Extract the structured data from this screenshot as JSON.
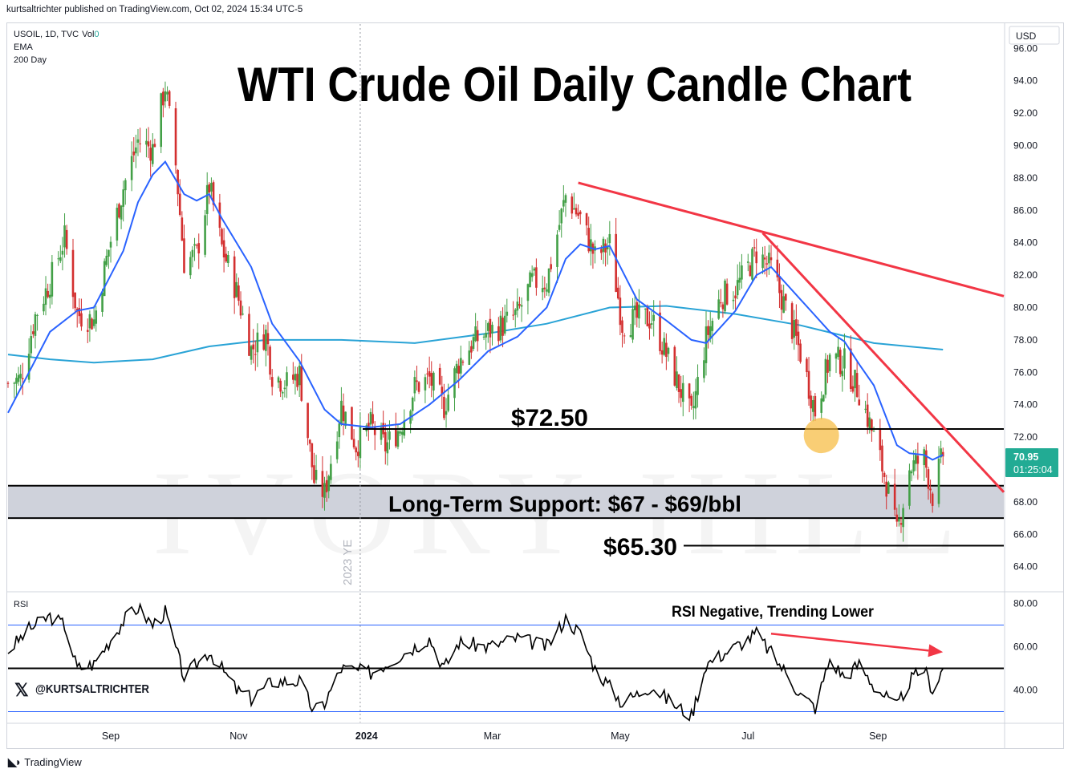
{
  "header": {
    "published": "kurtsaltrichter published on TradingView.com, Oct 02, 2024 15:34 UTC-5"
  },
  "legend": {
    "symbol": "USOIL, 1D, TVC",
    "vol_label": "Vol",
    "vol_value": "0",
    "ema_label": "EMA",
    "ma_label": "200 Day"
  },
  "title": "WTI Crude Oil Daily Candle Chart",
  "annotations": {
    "resistance_label": "$72.50",
    "support_zone_label": "Long-Term Support: $67 - $69/bbl",
    "low_label": "$65.30",
    "rsi_note": "RSI Negative, Trending Lower",
    "year_end_label": "2023 YE",
    "watermark": "IVORY HILL",
    "handle": "@KURTSALTRICHTER",
    "handle_icon": "x-logo-icon"
  },
  "price_axis": {
    "currency": "USD",
    "ticks": [
      "96.00",
      "94.00",
      "92.00",
      "90.00",
      "88.00",
      "86.00",
      "84.00",
      "82.00",
      "80.00",
      "78.00",
      "76.00",
      "74.00",
      "72.00",
      "70.00",
      "68.00",
      "66.00",
      "64.00"
    ],
    "last_price": "70.95",
    "countdown": "01:25:04"
  },
  "rsi_pane": {
    "label": "RSI",
    "ticks": [
      "80.00",
      "60.00",
      "40.00"
    ]
  },
  "time_axis": {
    "labels": [
      "Sep",
      "Nov",
      "2024",
      "Mar",
      "May",
      "Jul",
      "Sep"
    ]
  },
  "footer": {
    "brand": "TradingView",
    "brand_icon": "tradingview-logo-icon"
  },
  "colors": {
    "up": "#26a69a",
    "down": "#ef5350",
    "candle_up": "#43a047",
    "candle_down": "#d32f2f",
    "ema": "#2962ff",
    "ma200": "#29a3d6",
    "trendline": "#f23645",
    "support_zone": "#cfd2db",
    "last_price_bg": "#22ab94",
    "highlight": "#f6b93b"
  },
  "chart_data": {
    "type": "candlestick",
    "symbol": "USOIL",
    "timeframe": "1D",
    "ylim": [
      62.5,
      97.5
    ],
    "rsi_ylim": [
      25,
      85
    ],
    "x_range": [
      "2023-07-14",
      "2024-10-31"
    ],
    "close_series": [
      [
        "2023-07-14",
        75.3
      ],
      [
        "2023-07-20",
        75.6
      ],
      [
        "2023-07-27",
        79.5
      ],
      [
        "2023-08-03",
        81.6
      ],
      [
        "2023-08-10",
        84.3
      ],
      [
        "2023-08-16",
        79.6
      ],
      [
        "2023-08-24",
        79.2
      ],
      [
        "2023-08-31",
        83.6
      ],
      [
        "2023-09-07",
        87.4
      ],
      [
        "2023-09-14",
        90.3
      ],
      [
        "2023-09-21",
        89.8
      ],
      [
        "2023-09-27",
        93.7
      ],
      [
        "2023-10-02",
        88.8
      ],
      [
        "2023-10-06",
        82.8
      ],
      [
        "2023-10-12",
        83.3
      ],
      [
        "2023-10-18",
        87.5
      ],
      [
        "2023-10-24",
        83.7
      ],
      [
        "2023-10-31",
        81.0
      ],
      [
        "2023-11-07",
        77.4
      ],
      [
        "2023-11-14",
        78.4
      ],
      [
        "2023-11-17",
        75.9
      ],
      [
        "2023-11-24",
        75.3
      ],
      [
        "2023-11-30",
        75.9
      ],
      [
        "2023-12-07",
        69.3
      ],
      [
        "2023-12-12",
        68.5
      ],
      [
        "2023-12-20",
        74.0
      ],
      [
        "2023-12-27",
        71.5
      ],
      [
        "2024-01-03",
        72.7
      ],
      [
        "2024-01-10",
        71.4
      ],
      [
        "2024-01-17",
        72.6
      ],
      [
        "2024-01-24",
        75.1
      ],
      [
        "2024-01-31",
        75.6
      ],
      [
        "2024-02-07",
        73.9
      ],
      [
        "2024-02-14",
        76.6
      ],
      [
        "2024-02-21",
        77.9
      ],
      [
        "2024-02-28",
        78.5
      ],
      [
        "2024-03-06",
        78.9
      ],
      [
        "2024-03-13",
        79.6
      ],
      [
        "2024-03-20",
        81.6
      ],
      [
        "2024-03-27",
        81.6
      ],
      [
        "2024-04-05",
        86.9
      ],
      [
        "2024-04-12",
        85.5
      ],
      [
        "2024-04-19",
        83.1
      ],
      [
        "2024-04-26",
        83.9
      ],
      [
        "2024-05-02",
        79.0
      ],
      [
        "2024-05-09",
        79.3
      ],
      [
        "2024-05-16",
        79.3
      ],
      [
        "2024-05-23",
        77.1
      ],
      [
        "2024-06-04",
        73.2
      ],
      [
        "2024-06-11",
        78.1
      ],
      [
        "2024-06-18",
        80.7
      ],
      [
        "2024-06-25",
        81.1
      ],
      [
        "2024-07-05",
        83.4
      ],
      [
        "2024-07-12",
        82.4
      ],
      [
        "2024-07-19",
        79.9
      ],
      [
        "2024-07-26",
        77.2
      ],
      [
        "2024-08-02",
        73.6
      ],
      [
        "2024-08-09",
        76.9
      ],
      [
        "2024-08-16",
        76.6
      ],
      [
        "2024-08-23",
        74.8
      ],
      [
        "2024-08-30",
        72.0
      ],
      [
        "2024-09-05",
        69.2
      ],
      [
        "2024-09-10",
        66.0
      ],
      [
        "2024-09-16",
        70.1
      ],
      [
        "2024-09-23",
        70.7
      ],
      [
        "2024-09-27",
        68.4
      ],
      [
        "2024-10-02",
        70.95
      ]
    ],
    "ema_series": [
      [
        "2023-07-14",
        73.5
      ],
      [
        "2023-08-03",
        78.5
      ],
      [
        "2023-08-16",
        79.8
      ],
      [
        "2023-08-24",
        80.0
      ],
      [
        "2023-09-07",
        83.5
      ],
      [
        "2023-09-14",
        86.5
      ],
      [
        "2023-09-21",
        88.2
      ],
      [
        "2023-09-27",
        89.0
      ],
      [
        "2023-10-06",
        87.0
      ],
      [
        "2023-10-12",
        86.6
      ],
      [
        "2023-10-18",
        87.0
      ],
      [
        "2023-10-24",
        85.5
      ],
      [
        "2023-11-07",
        82.5
      ],
      [
        "2023-11-17",
        79.0
      ],
      [
        "2023-11-30",
        76.7
      ],
      [
        "2023-12-12",
        73.7
      ],
      [
        "2023-12-20",
        72.8
      ],
      [
        "2024-01-03",
        72.6
      ],
      [
        "2024-01-17",
        72.8
      ],
      [
        "2024-01-31",
        74.0
      ],
      [
        "2024-02-14",
        75.5
      ],
      [
        "2024-02-28",
        77.3
      ],
      [
        "2024-03-13",
        78.2
      ],
      [
        "2024-03-27",
        80.0
      ],
      [
        "2024-04-05",
        83.0
      ],
      [
        "2024-04-12",
        83.9
      ],
      [
        "2024-04-19",
        83.6
      ],
      [
        "2024-04-26",
        83.8
      ],
      [
        "2024-05-09",
        80.5
      ],
      [
        "2024-05-23",
        79.2
      ],
      [
        "2024-06-04",
        78.0
      ],
      [
        "2024-06-11",
        77.8
      ],
      [
        "2024-06-25",
        79.8
      ],
      [
        "2024-07-05",
        82.0
      ],
      [
        "2024-07-12",
        82.5
      ],
      [
        "2024-07-26",
        80.5
      ],
      [
        "2024-08-09",
        78.5
      ],
      [
        "2024-08-16",
        77.9
      ],
      [
        "2024-08-23",
        76.5
      ],
      [
        "2024-08-30",
        75.2
      ],
      [
        "2024-09-10",
        71.5
      ],
      [
        "2024-09-16",
        71.0
      ],
      [
        "2024-09-23",
        70.9
      ],
      [
        "2024-09-27",
        70.6
      ],
      [
        "2024-10-02",
        70.9
      ]
    ],
    "ma200_series": [
      [
        "2023-07-14",
        77.1
      ],
      [
        "2023-08-03",
        76.8
      ],
      [
        "2023-08-24",
        76.6
      ],
      [
        "2023-09-21",
        76.8
      ],
      [
        "2023-10-18",
        77.6
      ],
      [
        "2023-11-14",
        78.0
      ],
      [
        "2023-12-20",
        78.0
      ],
      [
        "2024-01-24",
        77.8
      ],
      [
        "2024-02-28",
        78.4
      ],
      [
        "2024-03-27",
        79.0
      ],
      [
        "2024-04-26",
        80.0
      ],
      [
        "2024-05-23",
        80.1
      ],
      [
        "2024-06-25",
        79.6
      ],
      [
        "2024-07-26",
        78.9
      ],
      [
        "2024-08-30",
        77.8
      ],
      [
        "2024-10-02",
        77.4
      ]
    ],
    "rsi_series": [
      [
        "2023-07-14",
        58
      ],
      [
        "2023-07-24",
        68
      ],
      [
        "2023-08-03",
        74
      ],
      [
        "2023-08-10",
        70
      ],
      [
        "2023-08-16",
        50
      ],
      [
        "2023-08-24",
        52
      ],
      [
        "2023-09-07",
        72
      ],
      [
        "2023-09-14",
        78
      ],
      [
        "2023-09-21",
        70
      ],
      [
        "2023-09-27",
        76
      ],
      [
        "2023-10-06",
        46
      ],
      [
        "2023-10-12",
        52
      ],
      [
        "2023-10-18",
        58
      ],
      [
        "2023-10-31",
        40
      ],
      [
        "2023-11-07",
        36
      ],
      [
        "2023-11-17",
        44
      ],
      [
        "2023-11-30",
        44
      ],
      [
        "2023-12-07",
        30
      ],
      [
        "2023-12-12",
        34
      ],
      [
        "2023-12-20",
        50
      ],
      [
        "2024-01-03",
        48
      ],
      [
        "2024-01-17",
        56
      ],
      [
        "2024-01-31",
        64
      ],
      [
        "2024-02-07",
        50
      ],
      [
        "2024-02-14",
        62
      ],
      [
        "2024-02-28",
        60
      ],
      [
        "2024-03-13",
        64
      ],
      [
        "2024-03-27",
        60
      ],
      [
        "2024-04-05",
        73
      ],
      [
        "2024-04-12",
        66
      ],
      [
        "2024-04-19",
        50
      ],
      [
        "2024-05-02",
        34
      ],
      [
        "2024-05-16",
        42
      ],
      [
        "2024-05-23",
        36
      ],
      [
        "2024-06-04",
        28
      ],
      [
        "2024-06-11",
        52
      ],
      [
        "2024-06-25",
        60
      ],
      [
        "2024-07-05",
        66
      ],
      [
        "2024-07-19",
        48
      ],
      [
        "2024-07-26",
        38
      ],
      [
        "2024-08-02",
        32
      ],
      [
        "2024-08-09",
        54
      ],
      [
        "2024-08-16",
        46
      ],
      [
        "2024-08-23",
        52
      ],
      [
        "2024-08-30",
        42
      ],
      [
        "2024-09-10",
        32
      ],
      [
        "2024-09-16",
        44
      ],
      [
        "2024-09-23",
        50
      ],
      [
        "2024-09-27",
        40
      ],
      [
        "2024-10-02",
        50
      ]
    ],
    "rsi_bands": [
      70,
      50,
      30
    ],
    "horizontal_levels": [
      {
        "label": "$72.50",
        "price": 72.5
      },
      {
        "label": "$65.30",
        "price": 65.3
      }
    ],
    "support_zone": {
      "label": "Long-Term Support: $67 - $69/bbl",
      "low": 67,
      "high": 69
    },
    "trendlines": [
      {
        "from": [
          "2024-04-11",
          87.7
        ],
        "to": [
          "2024-10-31",
          80.7
        ]
      },
      {
        "from": [
          "2024-07-08",
          84.6
        ],
        "to": [
          "2024-10-31",
          68.6
        ]
      }
    ],
    "rsi_arrow": {
      "from": [
        "2024-07-12",
        66
      ],
      "to": [
        "2024-10-02",
        57.5
      ]
    },
    "highlight_point": [
      "2024-08-05",
      72.1
    ],
    "year_end_marker": "2023-12-29"
  }
}
